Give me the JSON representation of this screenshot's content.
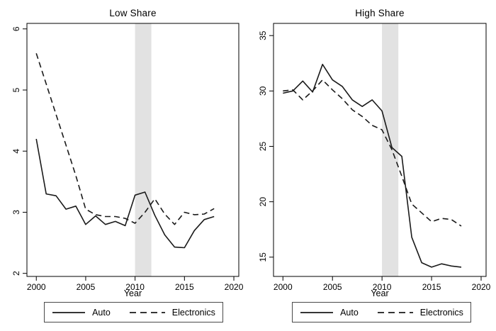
{
  "colors": {
    "line": "#1a1a1a",
    "band": "#e2e2e2",
    "frame": "#000000",
    "text": "#000000",
    "background": "#ffffff"
  },
  "chart_data": [
    {
      "type": "line",
      "title": "Low Share",
      "xlabel": "Year",
      "legend_position": "bottom",
      "grid": false,
      "x": [
        2000,
        2001,
        2002,
        2003,
        2004,
        2005,
        2006,
        2007,
        2008,
        2009,
        2010,
        2011,
        2012,
        2013,
        2014,
        2015,
        2016,
        2017,
        2018
      ],
      "series": [
        {
          "name": "Auto",
          "style": "solid",
          "values": [
            4.2,
            3.3,
            3.27,
            3.05,
            3.1,
            2.8,
            2.94,
            2.8,
            2.85,
            2.78,
            3.28,
            3.33,
            2.95,
            2.63,
            2.43,
            2.42,
            2.7,
            2.88,
            2.93
          ]
        },
        {
          "name": "Electronics",
          "style": "dashed",
          "values": [
            5.6,
            5.1,
            4.6,
            4.1,
            3.6,
            3.05,
            2.96,
            2.93,
            2.93,
            2.9,
            2.82,
            3.0,
            3.22,
            2.97,
            2.8,
            3.0,
            2.96,
            2.97,
            3.06
          ]
        }
      ],
      "xlim": [
        1999.05,
        2020.5
      ],
      "ylim": [
        1.95,
        6.09
      ],
      "xticks": [
        2000,
        2005,
        2010,
        2015,
        2020
      ],
      "yticks": [
        2,
        3,
        4,
        5,
        6
      ],
      "shaded_band_x": [
        2010,
        2011.65
      ]
    },
    {
      "type": "line",
      "title": "High Share",
      "xlabel": "Year",
      "legend_position": "bottom",
      "grid": false,
      "x": [
        2000,
        2001,
        2002,
        2003,
        2004,
        2005,
        2006,
        2007,
        2008,
        2009,
        2010,
        2011,
        2012,
        2013,
        2014,
        2015,
        2016,
        2017,
        2018
      ],
      "series": [
        {
          "name": "Auto",
          "style": "solid",
          "values": [
            29.8,
            30.0,
            30.9,
            29.9,
            32.4,
            31.0,
            30.4,
            29.2,
            28.6,
            29.2,
            28.2,
            24.9,
            24.1,
            16.8,
            14.5,
            14.1,
            14.4,
            14.2,
            14.1
          ]
        },
        {
          "name": "Electronics",
          "style": "dashed",
          "values": [
            30.0,
            30.1,
            29.2,
            30.0,
            31.0,
            30.1,
            29.3,
            28.3,
            27.7,
            26.9,
            26.5,
            24.7,
            22.3,
            19.8,
            19.0,
            18.2,
            18.5,
            18.4,
            17.8
          ]
        }
      ],
      "xlim": [
        1999.05,
        2020.5
      ],
      "ylim": [
        13.26,
        36.1
      ],
      "xticks": [
        2000,
        2005,
        2010,
        2015,
        2020
      ],
      "yticks": [
        15,
        20,
        25,
        30,
        35
      ],
      "shaded_band_x": [
        2010,
        2011.65
      ]
    }
  ]
}
